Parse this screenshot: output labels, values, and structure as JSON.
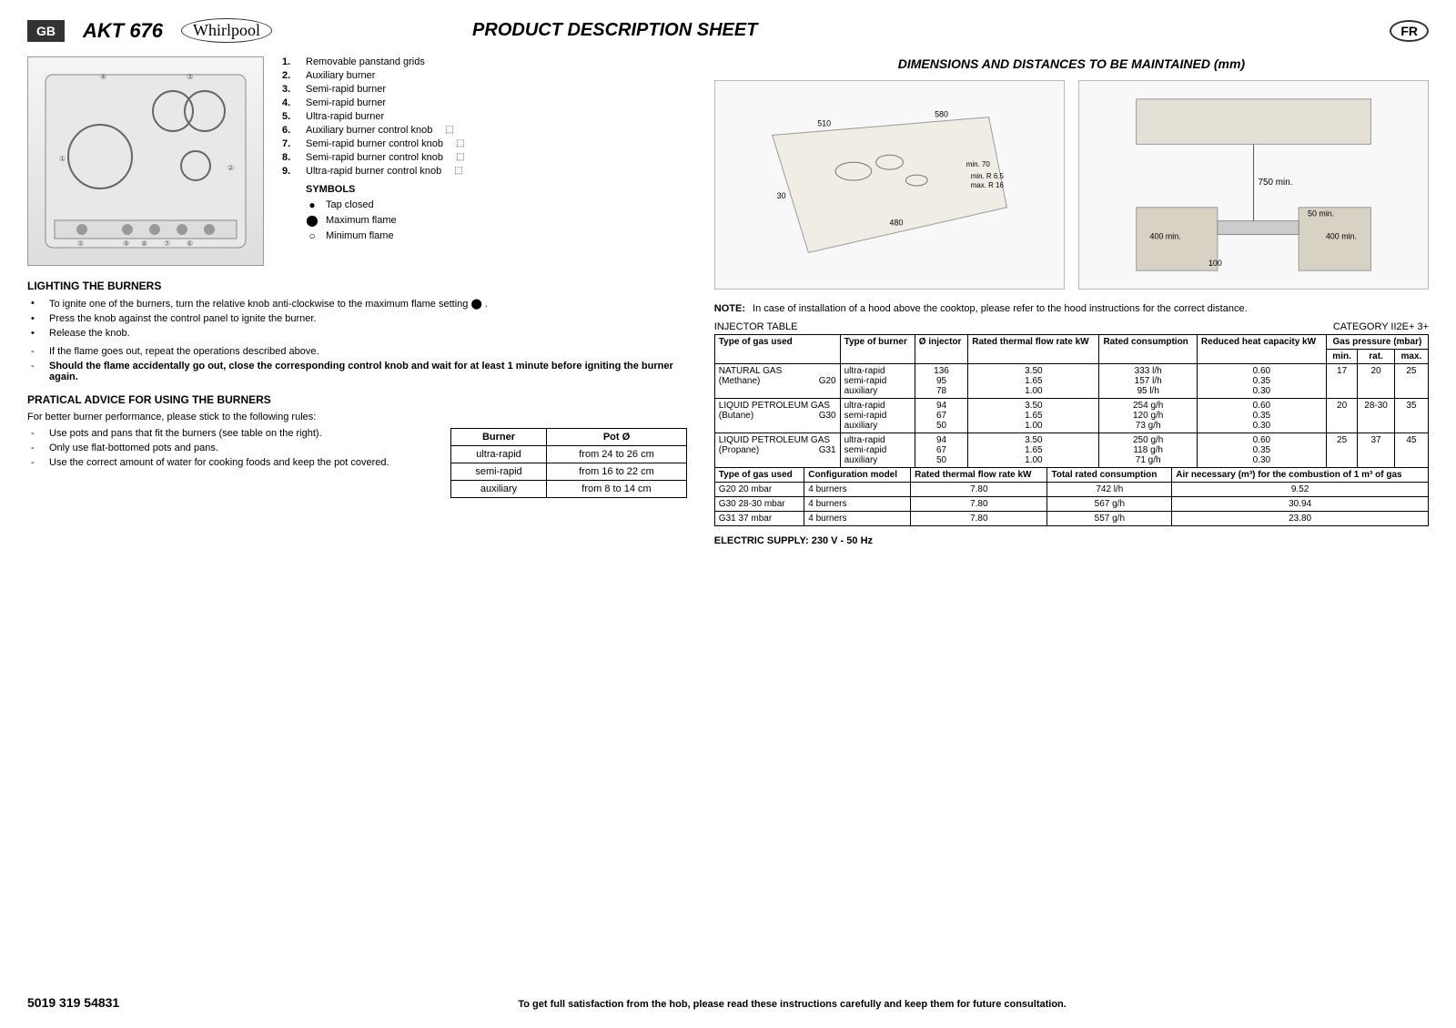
{
  "header": {
    "gb": "GB",
    "model": "AKT 676",
    "brand": "Whirlpool",
    "title": "PRODUCT DESCRIPTION SHEET",
    "fr": "FR"
  },
  "parts": [
    {
      "n": "1.",
      "label": "Removable panstand grids",
      "icon": ""
    },
    {
      "n": "2.",
      "label": "Auxiliary burner",
      "icon": ""
    },
    {
      "n": "3.",
      "label": "Semi-rapid burner",
      "icon": ""
    },
    {
      "n": "4.",
      "label": "Semi-rapid burner",
      "icon": ""
    },
    {
      "n": "5.",
      "label": "Ultra-rapid burner",
      "icon": ""
    },
    {
      "n": "6.",
      "label": "Auxiliary burner control knob",
      "icon": "⬚"
    },
    {
      "n": "7.",
      "label": "Semi-rapid burner control knob",
      "icon": "⬚"
    },
    {
      "n": "8.",
      "label": "Semi-rapid burner control knob",
      "icon": "⬚"
    },
    {
      "n": "9.",
      "label": "Ultra-rapid burner control knob",
      "icon": "⬚"
    }
  ],
  "symbolsHead": "SYMBOLS",
  "symbols": [
    {
      "icon": "●",
      "label": "Tap closed"
    },
    {
      "icon": "⬤",
      "label": "Maximum flame"
    },
    {
      "icon": "○",
      "label": "Minimum flame"
    }
  ],
  "lighting": {
    "head": "LIGHTING THE BURNERS",
    "bullets": [
      {
        "m": "•",
        "t": "To ignite one of the burners, turn the relative knob anti-clockwise to the maximum flame setting  ⬤ ."
      },
      {
        "m": "•",
        "t": "Press the knob against the control panel to ignite the burner."
      },
      {
        "m": "•",
        "t": "Release the knob."
      }
    ],
    "dash": [
      {
        "m": "-",
        "t": "If the flame goes out, repeat the operations described above."
      },
      {
        "m": "-",
        "t": "Should the flame accidentally go out, close the corresponding control knob and wait for at least 1 minute before igniting the burner again.",
        "bold": true
      }
    ]
  },
  "advice": {
    "head": "PRATICAL ADVICE FOR USING THE BURNERS",
    "intro": "For better burner performance, please stick to the following rules:",
    "items": [
      {
        "m": "-",
        "t": "Use pots and pans that fit the burners (see table on the right)."
      },
      {
        "m": "-",
        "t": "Only use flat-bottomed pots and pans."
      },
      {
        "m": "-",
        "t": "Use the correct amount of water for cooking foods and keep the pot covered."
      }
    ]
  },
  "potTable": {
    "h1": "Burner",
    "h2": "Pot Ø",
    "rows": [
      [
        "ultra-rapid",
        "from 24 to 26 cm"
      ],
      [
        "semi-rapid",
        "from 16 to 22 cm"
      ],
      [
        "auxiliary",
        "from 8 to 14 cm"
      ]
    ]
  },
  "dims": {
    "title": "DIMENSIONS AND DISTANCES TO BE MAINTAINED (mm)",
    "left": {
      "labels": [
        "510",
        "580",
        "min. 70",
        "min. R 6.5",
        "max. R 16",
        "480",
        "30"
      ]
    },
    "right": {
      "labels": [
        "750 min.",
        "50 min.",
        "400 min.",
        "400 min.",
        "100"
      ]
    }
  },
  "note": {
    "lbl": "NOTE:",
    "txt": "In case of installation of a hood above the cooktop, please refer to the hood instructions for the correct distance."
  },
  "inj": {
    "label": "INJECTOR TABLE",
    "cat": "CATEGORY  II2E+ 3+",
    "headers": {
      "c1": "Type of gas used",
      "c2": "Type of burner",
      "c3": "Ø injector",
      "c4": "Rated thermal flow rate kW",
      "c5": "Rated consumption",
      "c6": "Reduced heat capacity kW",
      "c7": "Gas pressure (mbar)",
      "c7a": "min.",
      "c7b": "rat.",
      "c7c": "max."
    },
    "rows": [
      {
        "gas": "NATURAL GAS",
        "sub": "(Methane)",
        "code": "G20",
        "burners": [
          "ultra-rapid",
          "semi-rapid",
          "auxiliary"
        ],
        "inj": [
          "136",
          "95",
          "78"
        ],
        "flow": [
          "3.50",
          "1.65",
          "1.00"
        ],
        "cons": [
          "333 l/h",
          "157 l/h",
          "95 l/h"
        ],
        "red": [
          "0.60",
          "0.35",
          "0.30"
        ],
        "pmin": "17",
        "prat": "20",
        "pmax": "25"
      },
      {
        "gas": "LIQUID PETROLEUM GAS",
        "sub": "(Butane)",
        "code": "G30",
        "burners": [
          "ultra-rapid",
          "semi-rapid",
          "auxiliary"
        ],
        "inj": [
          "94",
          "67",
          "50"
        ],
        "flow": [
          "3.50",
          "1.65",
          "1.00"
        ],
        "cons": [
          "254 g/h",
          "120 g/h",
          "73 g/h"
        ],
        "red": [
          "0.60",
          "0.35",
          "0.30"
        ],
        "pmin": "20",
        "prat": "28-30",
        "pmax": "35"
      },
      {
        "gas": "LIQUID PETROLEUM GAS",
        "sub": "(Propane)",
        "code": "G31",
        "burners": [
          "ultra-rapid",
          "semi-rapid",
          "auxiliary"
        ],
        "inj": [
          "94",
          "67",
          "50"
        ],
        "flow": [
          "3.50",
          "1.65",
          "1.00"
        ],
        "cons": [
          "250 g/h",
          "118 g/h",
          "71 g/h"
        ],
        "red": [
          "0.60",
          "0.35",
          "0.30"
        ],
        "pmin": "25",
        "prat": "37",
        "pmax": "45"
      }
    ]
  },
  "cfg": {
    "headers": [
      "Type of gas used",
      "Configuration model",
      "Rated thermal flow rate kW",
      "Total rated consumption",
      "Air necessary (m³) for the combustion of 1 m³ of gas"
    ],
    "rows": [
      [
        "G20 20 mbar",
        "4 burners",
        "7.80",
        "742 l/h",
        "9.52"
      ],
      [
        "G30 28-30 mbar",
        "4 burners",
        "7.80",
        "567 g/h",
        "30.94"
      ],
      [
        "G31 37 mbar",
        "4 burners",
        "7.80",
        "557 g/h",
        "23.80"
      ]
    ]
  },
  "elec": "ELECTRIC SUPPLY: 230 V - 50 Hz",
  "footer": {
    "pn": "5019 319 54831",
    "msg": "To get full satisfaction from the hob, please read these instructions carefully and keep them for future consultation."
  }
}
